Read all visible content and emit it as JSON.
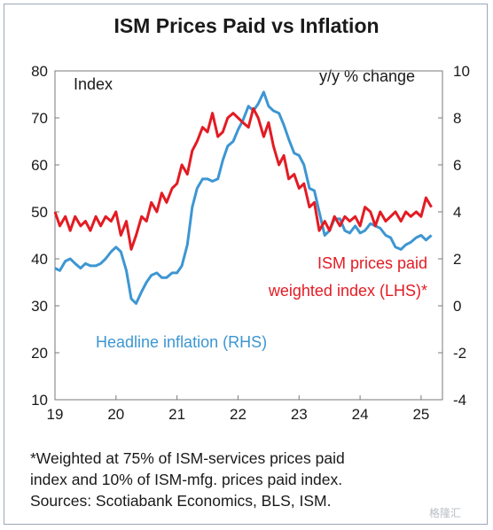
{
  "chart_data": {
    "type": "line",
    "title": "ISM Prices Paid vs Inflation",
    "left_axis": {
      "label": "Index",
      "ylim": [
        10,
        80
      ],
      "ticks": [
        10,
        20,
        30,
        40,
        50,
        60,
        70,
        80
      ]
    },
    "right_axis": {
      "label": "y/y % change",
      "ylim": [
        -4,
        10
      ],
      "ticks": [
        -4,
        -2,
        0,
        2,
        4,
        6,
        8,
        10
      ]
    },
    "x_axis": {
      "xlim": [
        2019,
        2025.35
      ],
      "ticks": [
        2019,
        2020,
        2021,
        2022,
        2023,
        2024,
        2025
      ],
      "tick_labels": [
        "19",
        "20",
        "21",
        "22",
        "23",
        "24",
        "25"
      ]
    },
    "grid": false,
    "series": [
      {
        "name": "ISM prices paid weighted index (LHS)",
        "axis": "left",
        "color": "#e31b23",
        "x": [
          2019.0,
          2019.08,
          2019.17,
          2019.25,
          2019.33,
          2019.42,
          2019.5,
          2019.58,
          2019.67,
          2019.75,
          2019.83,
          2019.92,
          2020.0,
          2020.08,
          2020.17,
          2020.25,
          2020.33,
          2020.42,
          2020.5,
          2020.58,
          2020.67,
          2020.75,
          2020.83,
          2020.92,
          2021.0,
          2021.08,
          2021.17,
          2021.25,
          2021.33,
          2021.42,
          2021.5,
          2021.58,
          2021.67,
          2021.75,
          2021.83,
          2021.92,
          2022.0,
          2022.08,
          2022.17,
          2022.25,
          2022.33,
          2022.42,
          2022.5,
          2022.58,
          2022.67,
          2022.75,
          2022.83,
          2022.92,
          2023.0,
          2023.08,
          2023.17,
          2023.25,
          2023.33,
          2023.42,
          2023.5,
          2023.58,
          2023.67,
          2023.75,
          2023.83,
          2023.92,
          2024.0,
          2024.08,
          2024.17,
          2024.25,
          2024.33,
          2024.42,
          2024.5,
          2024.58,
          2024.67,
          2024.75,
          2024.83,
          2024.92,
          2025.0,
          2025.08,
          2025.17
        ],
        "values": [
          50,
          47,
          49,
          46,
          49,
          47,
          48,
          46,
          49,
          47,
          49,
          48,
          50,
          45,
          48,
          42,
          45,
          49,
          48,
          52,
          50,
          54,
          52,
          55,
          56,
          60,
          58,
          63,
          65,
          68,
          67,
          71,
          66,
          67,
          70,
          71,
          70,
          69,
          68,
          72,
          70,
          66,
          69,
          64,
          60,
          62,
          57,
          58,
          55,
          56,
          51,
          52,
          46,
          48,
          46,
          49,
          47,
          49,
          48,
          49,
          47,
          51,
          50,
          47,
          50,
          48,
          49,
          50,
          48,
          50,
          49,
          50,
          49,
          53,
          51
        ]
      },
      {
        "name": "Headline inflation (RHS)",
        "axis": "right",
        "color": "#3d96d2",
        "x": [
          2019.0,
          2019.08,
          2019.17,
          2019.25,
          2019.33,
          2019.42,
          2019.5,
          2019.58,
          2019.67,
          2019.75,
          2019.83,
          2019.92,
          2020.0,
          2020.08,
          2020.17,
          2020.25,
          2020.33,
          2020.42,
          2020.5,
          2020.58,
          2020.67,
          2020.75,
          2020.83,
          2020.92,
          2021.0,
          2021.08,
          2021.17,
          2021.25,
          2021.33,
          2021.42,
          2021.5,
          2021.58,
          2021.67,
          2021.75,
          2021.83,
          2021.92,
          2022.0,
          2022.08,
          2022.17,
          2022.25,
          2022.33,
          2022.42,
          2022.5,
          2022.58,
          2022.67,
          2022.75,
          2022.83,
          2022.92,
          2023.0,
          2023.08,
          2023.17,
          2023.25,
          2023.33,
          2023.42,
          2023.5,
          2023.58,
          2023.67,
          2023.75,
          2023.83,
          2023.92,
          2024.0,
          2024.08,
          2024.17,
          2024.25,
          2024.33,
          2024.42,
          2024.5,
          2024.58,
          2024.67,
          2024.75,
          2024.83,
          2024.92,
          2025.0,
          2025.08,
          2025.17
        ],
        "values": [
          1.6,
          1.5,
          1.9,
          2.0,
          1.8,
          1.6,
          1.8,
          1.7,
          1.7,
          1.8,
          2.0,
          2.3,
          2.5,
          2.3,
          1.5,
          0.3,
          0.1,
          0.6,
          1.0,
          1.3,
          1.4,
          1.2,
          1.2,
          1.4,
          1.4,
          1.7,
          2.6,
          4.2,
          5.0,
          5.4,
          5.4,
          5.3,
          5.4,
          6.2,
          6.8,
          7.0,
          7.5,
          7.9,
          8.5,
          8.3,
          8.6,
          9.1,
          8.5,
          8.3,
          8.2,
          7.7,
          7.1,
          6.5,
          6.4,
          6.0,
          5.0,
          4.9,
          4.0,
          3.0,
          3.2,
          3.7,
          3.7,
          3.2,
          3.1,
          3.4,
          3.1,
          3.2,
          3.5,
          3.4,
          3.3,
          3.0,
          2.9,
          2.5,
          2.4,
          2.6,
          2.7,
          2.9,
          3.0,
          2.8,
          3.0
        ]
      }
    ],
    "annotations": {
      "red_line1": "ISM prices paid",
      "red_line2": "weighted index (LHS)*",
      "blue_line": "Headline inflation (RHS)"
    }
  },
  "footnote": {
    "line1": "*Weighted at 75% of ISM-services prices paid",
    "line2": "index and 10% of ISM-mfg. prices paid index.",
    "line3": "Sources: Scotiabank Economics, BLS, ISM."
  },
  "watermark": "格隆汇"
}
